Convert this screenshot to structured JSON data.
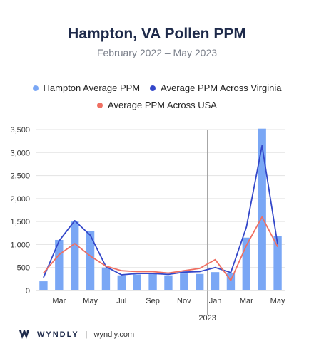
{
  "title": "Hampton, VA Pollen PPM",
  "subtitle": "February 2022 – May 2023",
  "legend": [
    {
      "label": "Hampton Average PPM",
      "color": "#7aa7f5"
    },
    {
      "label": "Average PPM Across Virginia",
      "color": "#3347c9"
    },
    {
      "label": "Average PPM Across USA",
      "color": "#ef6f62"
    }
  ],
  "footer": {
    "brand": "WYNDLY",
    "url": "wyndly.com"
  },
  "chart_data": {
    "type": "bar",
    "x": [
      "2022-02",
      "2022-03",
      "2022-04",
      "2022-05",
      "2022-06",
      "2022-07",
      "2022-08",
      "2022-09",
      "2022-10",
      "2022-11",
      "2022-12",
      "2023-01",
      "2023-02",
      "2023-03",
      "2023-04",
      "2023-05"
    ],
    "tick_labels": [
      "",
      "Mar",
      "",
      "May",
      "",
      "Jul",
      "",
      "Sep",
      "",
      "Nov",
      "",
      "Jan",
      "",
      "Mar",
      "",
      "May"
    ],
    "year_label": "2023",
    "year_divider_after_index": 10,
    "ylim": [
      0,
      3500
    ],
    "yticks": [
      0,
      500,
      1000,
      1500,
      2000,
      2500,
      3000,
      3500
    ],
    "ytick_labels": [
      "0",
      "500",
      "1,000",
      "1,500",
      "2,000",
      "2,500",
      "3,000",
      "3,500"
    ],
    "grid": true,
    "series": [
      {
        "name": "Hampton Average PPM",
        "type": "bar",
        "color": "#7aa7f5",
        "values": [
          200,
          1100,
          1500,
          1300,
          500,
          330,
          350,
          360,
          330,
          370,
          360,
          400,
          380,
          1150,
          3520,
          1180
        ]
      },
      {
        "name": "Average PPM Across Virginia",
        "type": "line",
        "color": "#3347c9",
        "values": [
          280,
          1080,
          1520,
          1200,
          520,
          340,
          370,
          370,
          350,
          400,
          410,
          500,
          390,
          1380,
          3150,
          1000
        ]
      },
      {
        "name": "Average PPM Across USA",
        "type": "line",
        "color": "#ef6f62",
        "values": [
          380,
          780,
          1020,
          750,
          530,
          430,
          410,
          410,
          380,
          430,
          480,
          670,
          220,
          980,
          1600,
          950
        ]
      }
    ]
  }
}
